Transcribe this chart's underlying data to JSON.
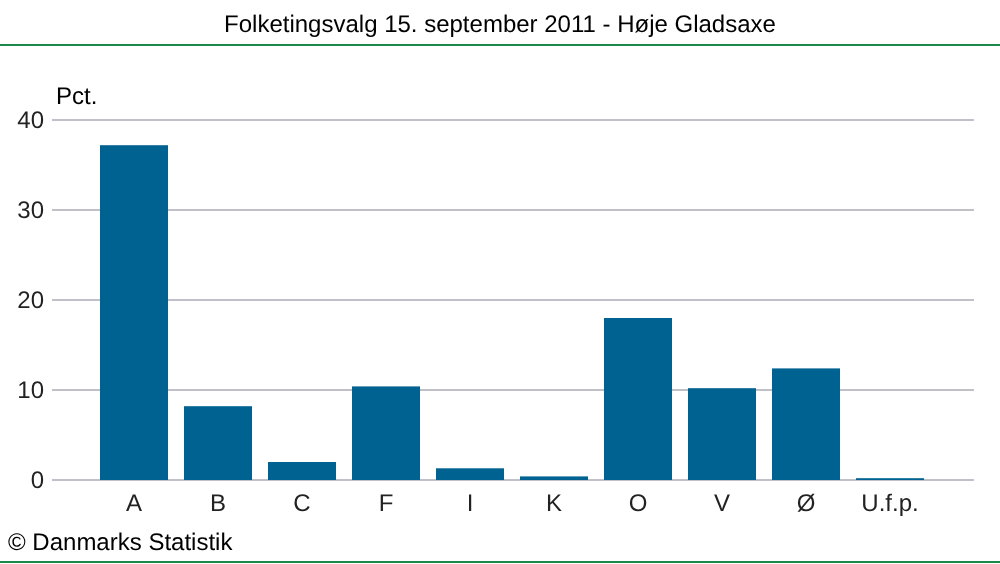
{
  "chart_data": {
    "type": "bar",
    "title": "Folketingsvalg 15. september 2011 - Høje Gladsaxe",
    "ylabel": "Pct.",
    "categories": [
      "A",
      "B",
      "C",
      "F",
      "I",
      "K",
      "O",
      "V",
      "Ø",
      "U.f.p."
    ],
    "values": [
      37.2,
      8.2,
      2.0,
      10.4,
      1.3,
      0.4,
      18.0,
      10.2,
      12.4,
      0.2
    ],
    "color": "#006291",
    "ylim": [
      0,
      40
    ],
    "yticks": [
      0,
      10,
      20,
      30,
      40
    ],
    "grid": "y",
    "annotations": [
      "© Danmarks Statistik"
    ]
  }
}
